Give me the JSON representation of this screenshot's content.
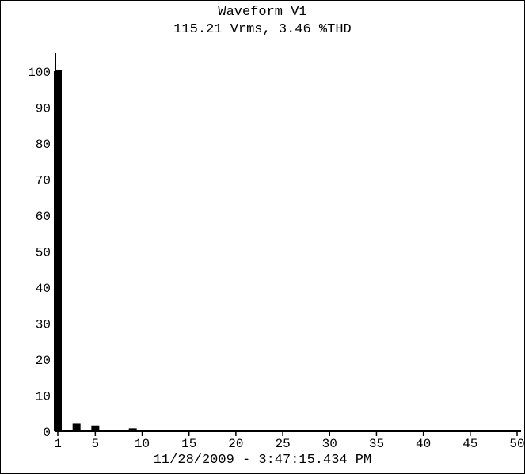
{
  "chart_data": {
    "type": "bar",
    "title": "Waveform V1",
    "subtitle": "115.21 Vrms, 3.46 %THD",
    "footer": "11/28/2009 - 3:47:15.434 PM",
    "x": [
      1,
      2,
      3,
      4,
      5,
      6,
      7,
      8,
      9,
      10,
      11,
      12,
      13,
      14,
      15,
      16,
      17,
      18,
      19,
      20,
      21,
      22,
      23,
      24,
      25,
      26,
      27,
      28,
      29,
      30,
      31,
      32,
      33,
      34,
      35,
      36,
      37,
      38,
      39,
      40,
      41,
      42,
      43,
      44,
      45,
      46,
      47,
      48,
      49,
      50
    ],
    "values": [
      100,
      0.1,
      2.1,
      0.1,
      1.6,
      0.1,
      0.4,
      0.1,
      0.8,
      0.1,
      0.3,
      0,
      0.1,
      0,
      0.1,
      0,
      0.1,
      0,
      0.1,
      0,
      0.1,
      0,
      0.1,
      0,
      0.1,
      0,
      0.1,
      0,
      0.1,
      0,
      0.1,
      0,
      0.1,
      0,
      0.1,
      0,
      0.1,
      0,
      0.1,
      0,
      0.1,
      0,
      0.1,
      0,
      0.1,
      0,
      0.1,
      0,
      0.1,
      0
    ],
    "xticks": [
      1,
      5,
      10,
      15,
      20,
      25,
      30,
      35,
      40,
      45,
      50
    ],
    "yticks": [
      0,
      10,
      20,
      30,
      40,
      50,
      60,
      70,
      80,
      90,
      100
    ],
    "xlim": [
      1,
      50
    ],
    "ylim": [
      0,
      100
    ],
    "grid": false,
    "colors": {
      "bar": "#000000",
      "axis": "#000000",
      "background": "#ffffff"
    }
  }
}
